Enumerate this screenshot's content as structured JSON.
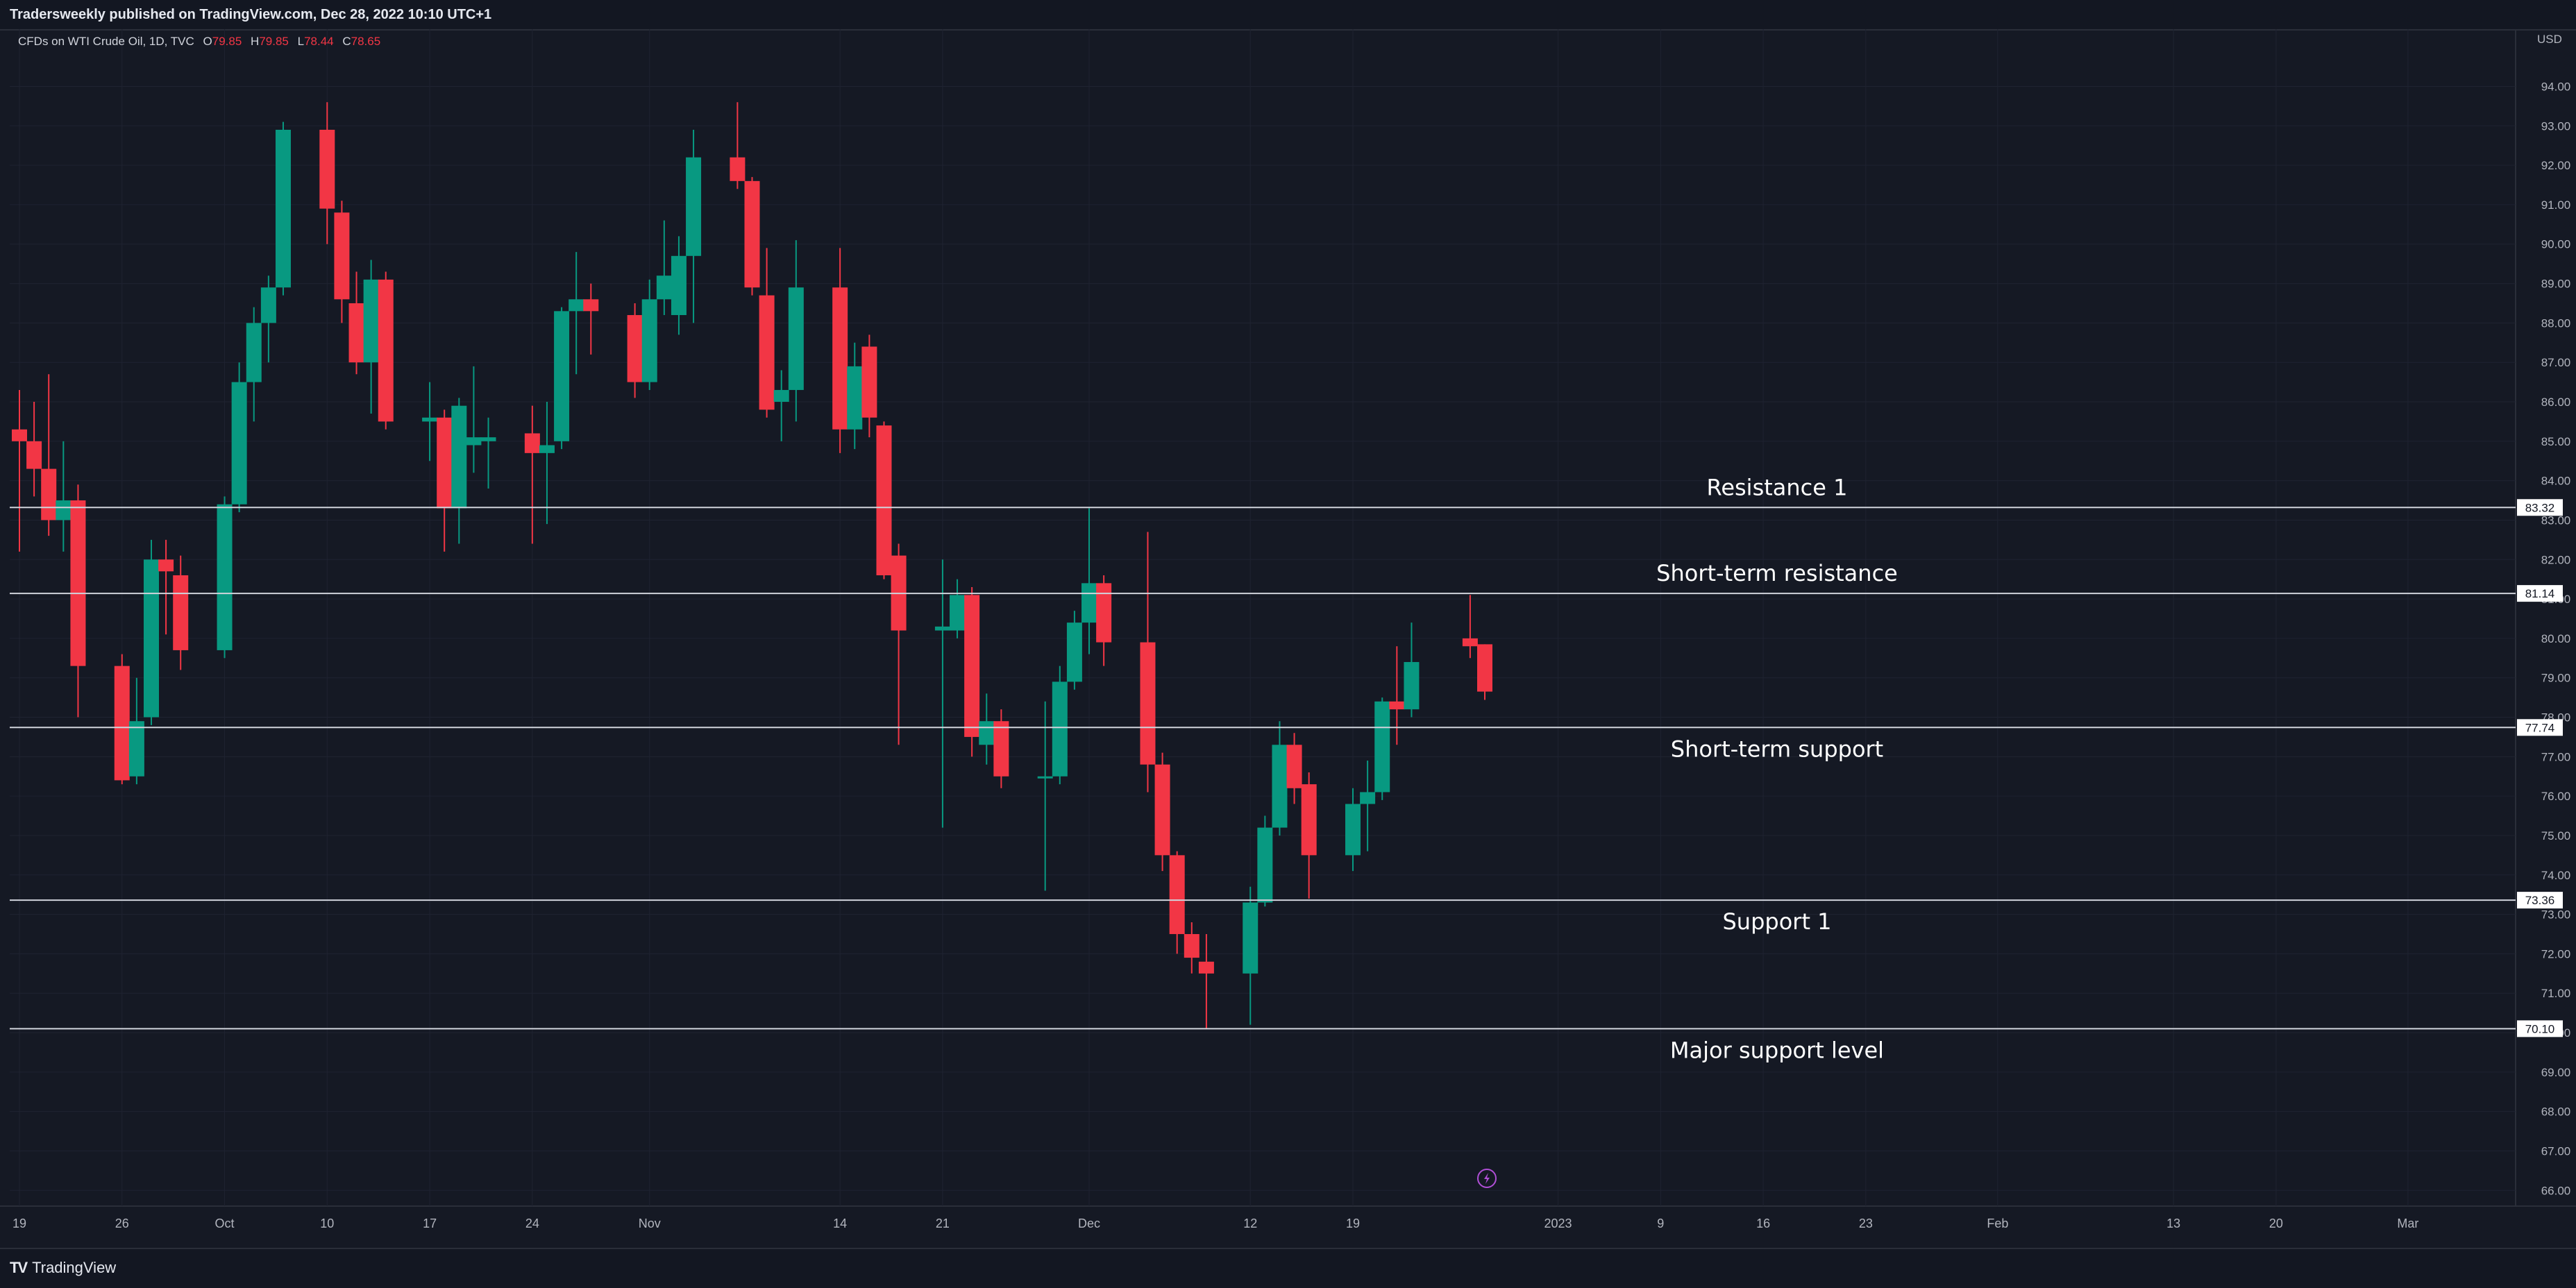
{
  "header": {
    "published_text": "Tradersweekly published on TradingView.com, Dec 28, 2022 10:10 UTC+1"
  },
  "legend": {
    "symbol": "CFDs on WTI Crude Oil, 1D, TVC",
    "open_label": "O",
    "open": "79.85",
    "high_label": "H",
    "high": "79.85",
    "low_label": "L",
    "low": "78.44",
    "close_label": "C",
    "close": "78.65"
  },
  "footer": {
    "brand": "TradingView"
  },
  "colors": {
    "background": "#151924",
    "up": "#089981",
    "down": "#f23645",
    "grid": "#1f2331",
    "text": "#b2b5be",
    "level_line": "#d1d4dc"
  },
  "icons": [
    "tradingview-logo-icon",
    "lightning-icon"
  ],
  "chart_data": {
    "type": "candlestick",
    "currency": "USD",
    "ylim": [
      65.6,
      95.1
    ],
    "y_ticks": [
      "66.00",
      "67.00",
      "68.00",
      "69.00",
      "70.00",
      "71.00",
      "72.00",
      "73.00",
      "74.00",
      "75.00",
      "76.00",
      "77.00",
      "78.00",
      "79.00",
      "80.00",
      "81.00",
      "82.00",
      "83.00",
      "84.00",
      "85.00",
      "86.00",
      "87.00",
      "88.00",
      "89.00",
      "90.00",
      "91.00",
      "92.00",
      "93.00",
      "94.00"
    ],
    "x_ticks": [
      {
        "label": "19",
        "date": "2022-09-19"
      },
      {
        "label": "26",
        "date": "2022-09-26"
      },
      {
        "label": "Oct",
        "date": "2022-10-03"
      },
      {
        "label": "10",
        "date": "2022-10-10"
      },
      {
        "label": "17",
        "date": "2022-10-17"
      },
      {
        "label": "24",
        "date": "2022-10-24"
      },
      {
        "label": "Nov",
        "date": "2022-11-01"
      },
      {
        "label": "14",
        "date": "2022-11-14"
      },
      {
        "label": "21",
        "date": "2022-11-21"
      },
      {
        "label": "Dec",
        "date": "2022-12-01"
      },
      {
        "label": "12",
        "date": "2022-12-12"
      },
      {
        "label": "19",
        "date": "2022-12-19"
      },
      {
        "label": "2023",
        "date": "2023-01-02"
      },
      {
        "label": "9",
        "date": "2023-01-09"
      },
      {
        "label": "16",
        "date": "2023-01-16"
      },
      {
        "label": "23",
        "date": "2023-01-23"
      },
      {
        "label": "Feb",
        "date": "2023-02-01"
      },
      {
        "label": "13",
        "date": "2023-02-13"
      },
      {
        "label": "20",
        "date": "2023-02-20"
      },
      {
        "label": "Mar",
        "date": "2023-03-01"
      }
    ],
    "candles": [
      {
        "date": "2022-09-19",
        "o": 85.3,
        "h": 86.3,
        "l": 82.2,
        "c": 85.0
      },
      {
        "date": "2022-09-20",
        "o": 85.0,
        "h": 86.0,
        "l": 83.6,
        "c": 84.3
      },
      {
        "date": "2022-09-21",
        "o": 84.3,
        "h": 86.7,
        "l": 82.6,
        "c": 83.0
      },
      {
        "date": "2022-09-22",
        "o": 83.0,
        "h": 85.0,
        "l": 82.2,
        "c": 83.5
      },
      {
        "date": "2022-09-23",
        "o": 83.5,
        "h": 83.9,
        "l": 78.0,
        "c": 79.3
      },
      {
        "date": "2022-09-26",
        "o": 79.3,
        "h": 79.6,
        "l": 76.3,
        "c": 76.4
      },
      {
        "date": "2022-09-27",
        "o": 76.5,
        "h": 79.0,
        "l": 76.3,
        "c": 77.9
      },
      {
        "date": "2022-09-28",
        "o": 78.0,
        "h": 82.5,
        "l": 77.8,
        "c": 82.0
      },
      {
        "date": "2022-09-29",
        "o": 82.0,
        "h": 82.5,
        "l": 80.1,
        "c": 81.7
      },
      {
        "date": "2022-09-30",
        "o": 81.6,
        "h": 82.1,
        "l": 79.2,
        "c": 79.7
      },
      {
        "date": "2022-10-03",
        "o": 79.7,
        "h": 83.6,
        "l": 79.5,
        "c": 83.4
      },
      {
        "date": "2022-10-04",
        "o": 83.4,
        "h": 87.0,
        "l": 83.2,
        "c": 86.5
      },
      {
        "date": "2022-10-05",
        "o": 86.5,
        "h": 88.4,
        "l": 85.5,
        "c": 88.0
      },
      {
        "date": "2022-10-06",
        "o": 88.0,
        "h": 89.2,
        "l": 87.0,
        "c": 88.9
      },
      {
        "date": "2022-10-07",
        "o": 88.9,
        "h": 93.1,
        "l": 88.7,
        "c": 92.9
      },
      {
        "date": "2022-10-10",
        "o": 92.9,
        "h": 93.6,
        "l": 90.0,
        "c": 90.9
      },
      {
        "date": "2022-10-11",
        "o": 90.8,
        "h": 91.1,
        "l": 88.0,
        "c": 88.6
      },
      {
        "date": "2022-10-12",
        "o": 88.5,
        "h": 89.3,
        "l": 86.7,
        "c": 87.0
      },
      {
        "date": "2022-10-13",
        "o": 87.0,
        "h": 89.6,
        "l": 85.7,
        "c": 89.1
      },
      {
        "date": "2022-10-14",
        "o": 89.1,
        "h": 89.3,
        "l": 85.3,
        "c": 85.5
      },
      {
        "date": "2022-10-17",
        "o": 85.5,
        "h": 86.5,
        "l": 84.5,
        "c": 85.6
      },
      {
        "date": "2022-10-18",
        "o": 85.6,
        "h": 85.8,
        "l": 82.2,
        "c": 83.3
      },
      {
        "date": "2022-10-19",
        "o": 83.3,
        "h": 86.1,
        "l": 82.4,
        "c": 85.9
      },
      {
        "date": "2022-10-20",
        "o": 84.9,
        "h": 86.9,
        "l": 84.2,
        "c": 85.1
      },
      {
        "date": "2022-10-21",
        "o": 85.0,
        "h": 85.6,
        "l": 83.8,
        "c": 85.1
      },
      {
        "date": "2022-10-24",
        "o": 85.2,
        "h": 85.9,
        "l": 82.4,
        "c": 84.7
      },
      {
        "date": "2022-10-25",
        "o": 84.7,
        "h": 86.0,
        "l": 82.9,
        "c": 84.9
      },
      {
        "date": "2022-10-26",
        "o": 85.0,
        "h": 88.4,
        "l": 84.8,
        "c": 88.3
      },
      {
        "date": "2022-10-27",
        "o": 88.3,
        "h": 89.8,
        "l": 86.7,
        "c": 88.6
      },
      {
        "date": "2022-10-28",
        "o": 88.6,
        "h": 89.0,
        "l": 87.2,
        "c": 88.3
      },
      {
        "date": "2022-10-31",
        "o": 88.2,
        "h": 88.5,
        "l": 86.1,
        "c": 86.5
      },
      {
        "date": "2022-11-01",
        "o": 86.5,
        "h": 89.1,
        "l": 86.3,
        "c": 88.6
      },
      {
        "date": "2022-11-02",
        "o": 88.6,
        "h": 90.6,
        "l": 88.2,
        "c": 89.2
      },
      {
        "date": "2022-11-03",
        "o": 88.2,
        "h": 90.2,
        "l": 87.7,
        "c": 89.7
      },
      {
        "date": "2022-11-04",
        "o": 89.7,
        "h": 92.9,
        "l": 88.0,
        "c": 92.2
      },
      {
        "date": "2022-11-07",
        "o": 92.2,
        "h": 93.6,
        "l": 91.4,
        "c": 91.6
      },
      {
        "date": "2022-11-08",
        "o": 91.6,
        "h": 91.7,
        "l": 88.7,
        "c": 88.9
      },
      {
        "date": "2022-11-09",
        "o": 88.7,
        "h": 89.9,
        "l": 85.6,
        "c": 85.8
      },
      {
        "date": "2022-11-10",
        "o": 86.0,
        "h": 86.8,
        "l": 85.0,
        "c": 86.3
      },
      {
        "date": "2022-11-11",
        "o": 86.3,
        "h": 90.1,
        "l": 85.5,
        "c": 88.9
      },
      {
        "date": "2022-11-14",
        "o": 88.9,
        "h": 89.9,
        "l": 84.7,
        "c": 85.3
      },
      {
        "date": "2022-11-15",
        "o": 85.3,
        "h": 87.5,
        "l": 84.8,
        "c": 86.9
      },
      {
        "date": "2022-11-16",
        "o": 87.4,
        "h": 87.7,
        "l": 85.1,
        "c": 85.6
      },
      {
        "date": "2022-11-17",
        "o": 85.4,
        "h": 85.5,
        "l": 81.5,
        "c": 81.6
      },
      {
        "date": "2022-11-18",
        "o": 82.1,
        "h": 82.4,
        "l": 77.3,
        "c": 80.2
      },
      {
        "date": "2022-11-21",
        "o": 80.2,
        "h": 82.0,
        "l": 75.2,
        "c": 80.3
      },
      {
        "date": "2022-11-22",
        "o": 80.2,
        "h": 81.5,
        "l": 80.0,
        "c": 81.1
      },
      {
        "date": "2022-11-23",
        "o": 81.1,
        "h": 81.3,
        "l": 77.0,
        "c": 77.5
      },
      {
        "date": "2022-11-24",
        "o": 77.3,
        "h": 78.6,
        "l": 76.8,
        "c": 77.9
      },
      {
        "date": "2022-11-25",
        "o": 77.9,
        "h": 78.2,
        "l": 76.2,
        "c": 76.5
      },
      {
        "date": "2022-11-28",
        "o": 76.5,
        "h": 78.4,
        "l": 73.6,
        "c": 76.5
      },
      {
        "date": "2022-11-29",
        "o": 76.5,
        "h": 79.3,
        "l": 76.3,
        "c": 78.9
      },
      {
        "date": "2022-11-30",
        "o": 78.9,
        "h": 80.7,
        "l": 78.7,
        "c": 80.4
      },
      {
        "date": "2022-12-01",
        "o": 80.4,
        "h": 83.3,
        "l": 79.6,
        "c": 81.4
      },
      {
        "date": "2022-12-02",
        "o": 81.4,
        "h": 81.6,
        "l": 79.3,
        "c": 79.9
      },
      {
        "date": "2022-12-05",
        "o": 79.9,
        "h": 82.7,
        "l": 76.1,
        "c": 76.8
      },
      {
        "date": "2022-12-06",
        "o": 76.8,
        "h": 77.1,
        "l": 74.1,
        "c": 74.5
      },
      {
        "date": "2022-12-07",
        "o": 74.5,
        "h": 74.6,
        "l": 72.0,
        "c": 72.5
      },
      {
        "date": "2022-12-08",
        "o": 72.5,
        "h": 72.8,
        "l": 71.5,
        "c": 71.9
      },
      {
        "date": "2022-12-09",
        "o": 71.8,
        "h": 72.5,
        "l": 70.1,
        "c": 71.5
      },
      {
        "date": "2022-12-12",
        "o": 71.5,
        "h": 73.7,
        "l": 70.2,
        "c": 73.3
      },
      {
        "date": "2022-12-13",
        "o": 73.3,
        "h": 75.5,
        "l": 73.2,
        "c": 75.2
      },
      {
        "date": "2022-12-14",
        "o": 75.2,
        "h": 77.9,
        "l": 75.0,
        "c": 77.3
      },
      {
        "date": "2022-12-15",
        "o": 77.3,
        "h": 77.6,
        "l": 75.8,
        "c": 76.2
      },
      {
        "date": "2022-12-16",
        "o": 76.3,
        "h": 76.6,
        "l": 73.4,
        "c": 74.5
      },
      {
        "date": "2022-12-19",
        "o": 74.5,
        "h": 76.2,
        "l": 74.1,
        "c": 75.8
      },
      {
        "date": "2022-12-20",
        "o": 75.8,
        "h": 76.9,
        "l": 74.6,
        "c": 76.1
      },
      {
        "date": "2022-12-21",
        "o": 76.1,
        "h": 78.5,
        "l": 75.9,
        "c": 78.4
      },
      {
        "date": "2022-12-22",
        "o": 78.4,
        "h": 79.8,
        "l": 77.3,
        "c": 78.2
      },
      {
        "date": "2022-12-23",
        "o": 78.2,
        "h": 80.4,
        "l": 78.0,
        "c": 79.4
      },
      {
        "date": "2022-12-27",
        "o": 80.0,
        "h": 81.1,
        "l": 79.5,
        "c": 79.8
      },
      {
        "date": "2022-12-28",
        "o": 79.85,
        "h": 79.85,
        "l": 78.44,
        "c": 78.65
      }
    ],
    "levels": [
      {
        "label": "Resistance 1",
        "value": 83.32,
        "tag": "83.32"
      },
      {
        "label": "Short-term resistance",
        "value": 81.14,
        "tag": "81.14"
      },
      {
        "label": "Short-term support",
        "value": 77.74,
        "tag": "77.74"
      },
      {
        "label": "Support 1",
        "value": 73.36,
        "tag": "73.36"
      },
      {
        "label": "Major support level",
        "value": 70.1,
        "tag": "70.10"
      }
    ]
  }
}
